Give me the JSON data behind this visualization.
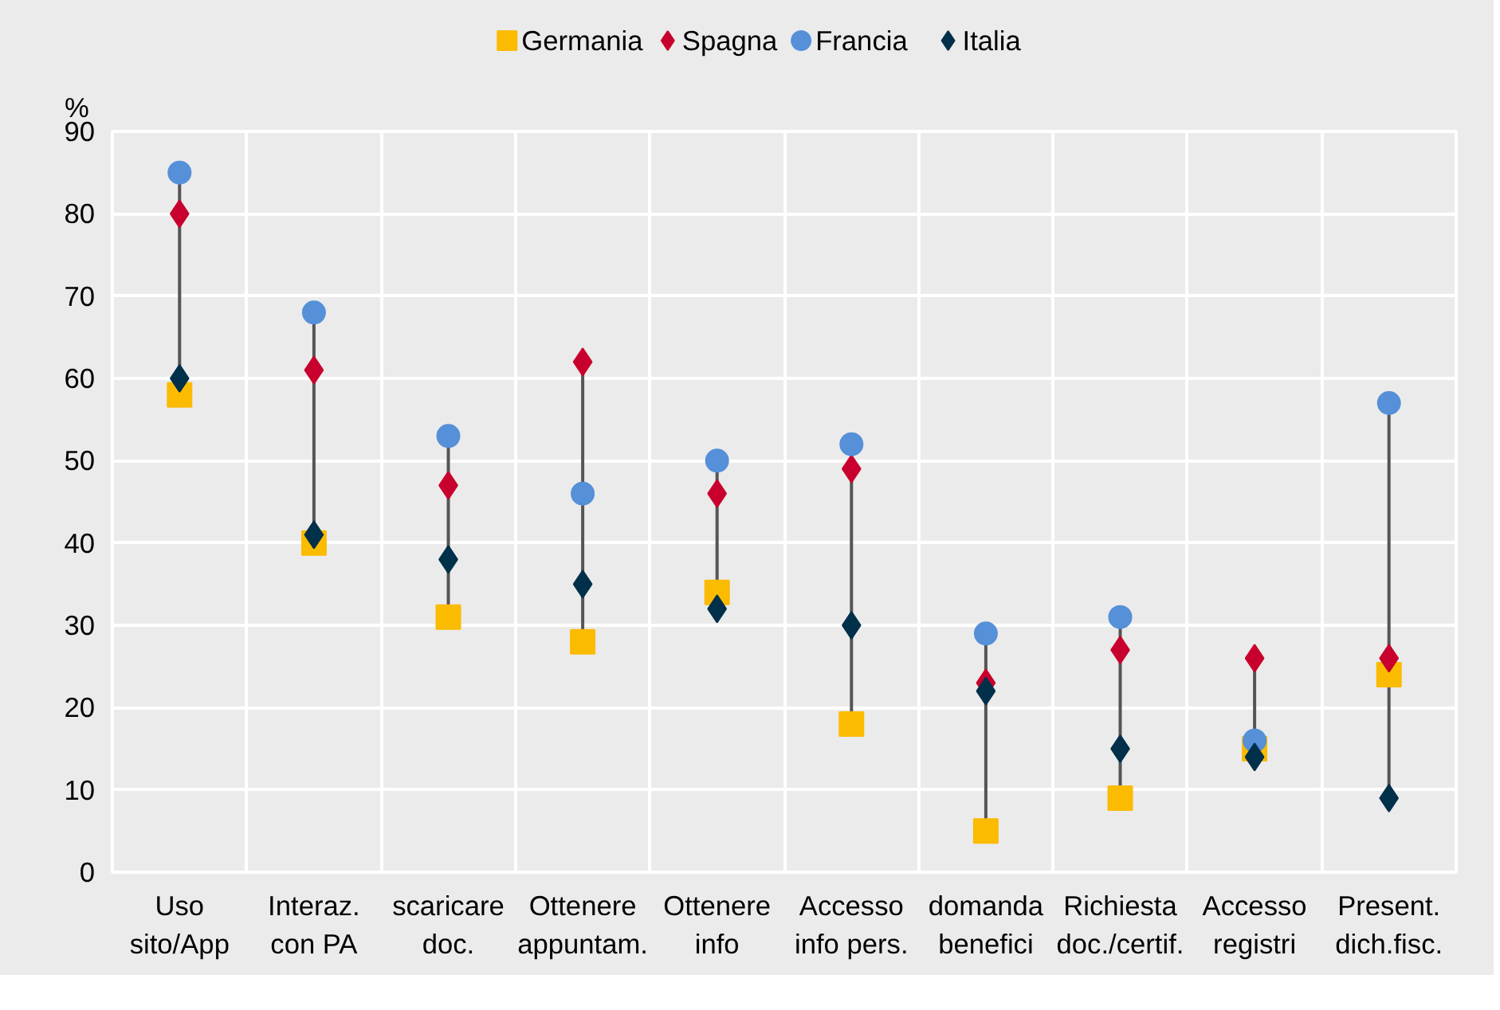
{
  "chart_data": {
    "type": "scatter",
    "ylabel": "%",
    "categories": [
      "Uso\nsito/App",
      "Interaz.\ncon PA",
      "scaricare\ndoc.",
      "Ottenere\nappuntam.",
      "Ottenere\ninfo",
      "Accesso\ninfo pers.",
      "domanda\nbenefici",
      "Richiesta\ndoc./certif.",
      "Accesso\nregistri",
      "Present.\ndich.fisc."
    ],
    "series": [
      {
        "name": "Germania",
        "color": "#fbbb00",
        "marker": "square",
        "values": [
          58,
          40,
          31,
          28,
          34,
          18,
          5,
          9,
          15,
          24
        ]
      },
      {
        "name": "Spagna",
        "color": "#c8002d",
        "marker": "diamond",
        "values": [
          80,
          61,
          47,
          62,
          46,
          49,
          23,
          27,
          26,
          26
        ]
      },
      {
        "name": "Francia",
        "color": "#5590d8",
        "marker": "circle",
        "values": [
          85,
          68,
          53,
          46,
          50,
          52,
          29,
          31,
          16,
          57
        ]
      },
      {
        "name": "Italia",
        "color": "#00304a",
        "marker": "diamond",
        "values": [
          60,
          41,
          38,
          35,
          32,
          30,
          22,
          15,
          14,
          9
        ]
      }
    ],
    "ylim": [
      0,
      90
    ],
    "yticks": [
      0,
      10,
      20,
      30,
      40,
      50,
      60,
      70,
      80,
      90
    ],
    "grid": true,
    "legend": "top"
  }
}
